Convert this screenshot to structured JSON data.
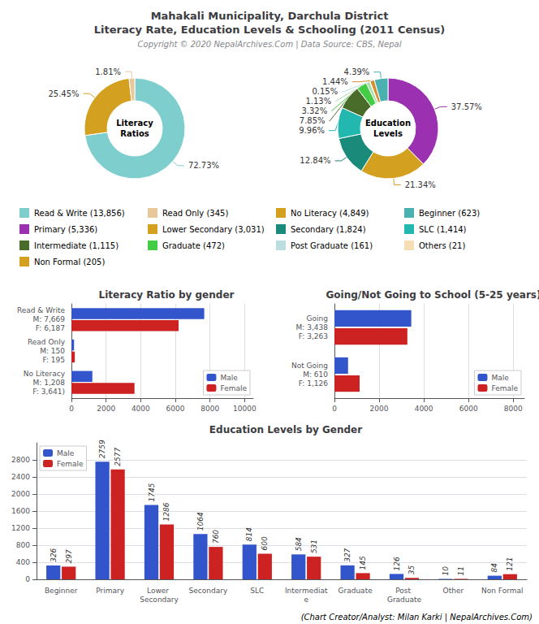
{
  "title": "Mahakali Municipality, Darchula District\nLiteracy Rate, Education Levels & Schooling (2011 Census)",
  "subtitle": "Copyright © 2020 NepalArchives.Com | Data Source: CBS, Nepal",
  "annotations": [
    "(Chart Creator/Analyst: Milan Karki | NepalArchives.Com)"
  ],
  "chart_data": [
    {
      "type": "pie",
      "title": "Literacy\nRatios",
      "values": [
        72.73,
        25.45,
        1.81
      ],
      "value_labels": [
        "72.73%",
        "25.45%",
        "1.81%"
      ],
      "colors": [
        "#7ecece",
        "#d4a020",
        "#e8c89a"
      ],
      "data_labels": true
    },
    {
      "type": "pie",
      "title": "Education\nLevels",
      "values": [
        37.57,
        21.34,
        12.84,
        9.96,
        7.85,
        3.32,
        1.13,
        0.15,
        1.44,
        4.39
      ],
      "value_labels": [
        "37.57%",
        "21.34%",
        "12.84%",
        "9.96%",
        "7.85%",
        "3.32%",
        "1.13%",
        "0.15%",
        "1.44%",
        "4.39%"
      ],
      "colors": [
        "#9b30b0",
        "#d4a020",
        "#1a8a7a",
        "#22b8b0",
        "#4a6c2a",
        "#44cc44",
        "#aaddaa",
        "#bbdddd",
        "#d49030",
        "#4ab0b0"
      ],
      "data_labels": true
    },
    {
      "type": "legend",
      "categories": [
        "Read & Write (13,856)",
        "Read Only (345)",
        "No Literacy (4,849)",
        "Beginner (623)",
        "Primary (5,336)",
        "Lower Secondary (3,031)",
        "Secondary (1,824)",
        "SLC (1,414)",
        "Intermediate (1,115)",
        "Graduate (472)",
        "Post Graduate (161)",
        "Others (21)",
        "Non Formal (205)"
      ],
      "colors": [
        "#7ecece",
        "#e8c89a",
        "#d4a020",
        "#4ab0b0",
        "#9b30b0",
        "#d4a020",
        "#1a8a7a",
        "#22b8b0",
        "#4a6c2a",
        "#44cc44",
        "#bbdddd",
        "#f5deb3",
        "#d4a020"
      ]
    },
    {
      "type": "bar",
      "orientation": "horizontal",
      "title": "Literacy Ratio by gender",
      "categories": [
        "Read & Write\nM: 7,669\nF: 6,187",
        "Read Only\nM: 150\nF: 195",
        "No Literacy\nM: 1,208\nF: 3,641)"
      ],
      "series": [
        {
          "name": "Male",
          "color": "#3355cc",
          "values": [
            7669,
            150,
            1208
          ]
        },
        {
          "name": "Female",
          "color": "#cc2222",
          "values": [
            6187,
            195,
            3641
          ]
        }
      ],
      "xlim": [
        0,
        10500
      ],
      "xticks": [
        0,
        2000,
        4000,
        6000,
        8000,
        10000
      ],
      "grid": true,
      "legend": "lower right"
    },
    {
      "type": "bar",
      "orientation": "horizontal",
      "title": "Going/Not Going to School (5-25 years)",
      "categories": [
        "Going\nM: 3,438\nF: 3,263",
        "Not Going\nM: 610\nF: 1,126"
      ],
      "series": [
        {
          "name": "Male",
          "color": "#3355cc",
          "values": [
            3438,
            610
          ]
        },
        {
          "name": "Female",
          "color": "#cc2222",
          "values": [
            3263,
            1126
          ]
        }
      ],
      "xlim": [
        0,
        8500
      ],
      "xticks": [
        0,
        2000,
        4000,
        6000,
        8000
      ],
      "grid": true,
      "legend": "lower right"
    },
    {
      "type": "bar",
      "title": "Education Levels by Gender",
      "categories": [
        "Beginner",
        "Primary",
        "Lower Secondary",
        "Secondary",
        "SLC",
        "Intermediate",
        "Graduate",
        "Post Graduate",
        "Other",
        "Non Formal"
      ],
      "series": [
        {
          "name": "Male",
          "color": "#3355cc",
          "values": [
            326,
            2759,
            1745,
            1064,
            814,
            584,
            327,
            126,
            10,
            84
          ]
        },
        {
          "name": "Female",
          "color": "#cc2222",
          "values": [
            297,
            2577,
            1286,
            760,
            600,
            531,
            145,
            35,
            11,
            121
          ]
        }
      ],
      "ylim": [
        0,
        3200
      ],
      "yticks": [
        0,
        400,
        800,
        1200,
        1600,
        2000,
        2400,
        2800
      ],
      "grid": true,
      "legend": "upper left",
      "data_labels": true
    }
  ]
}
